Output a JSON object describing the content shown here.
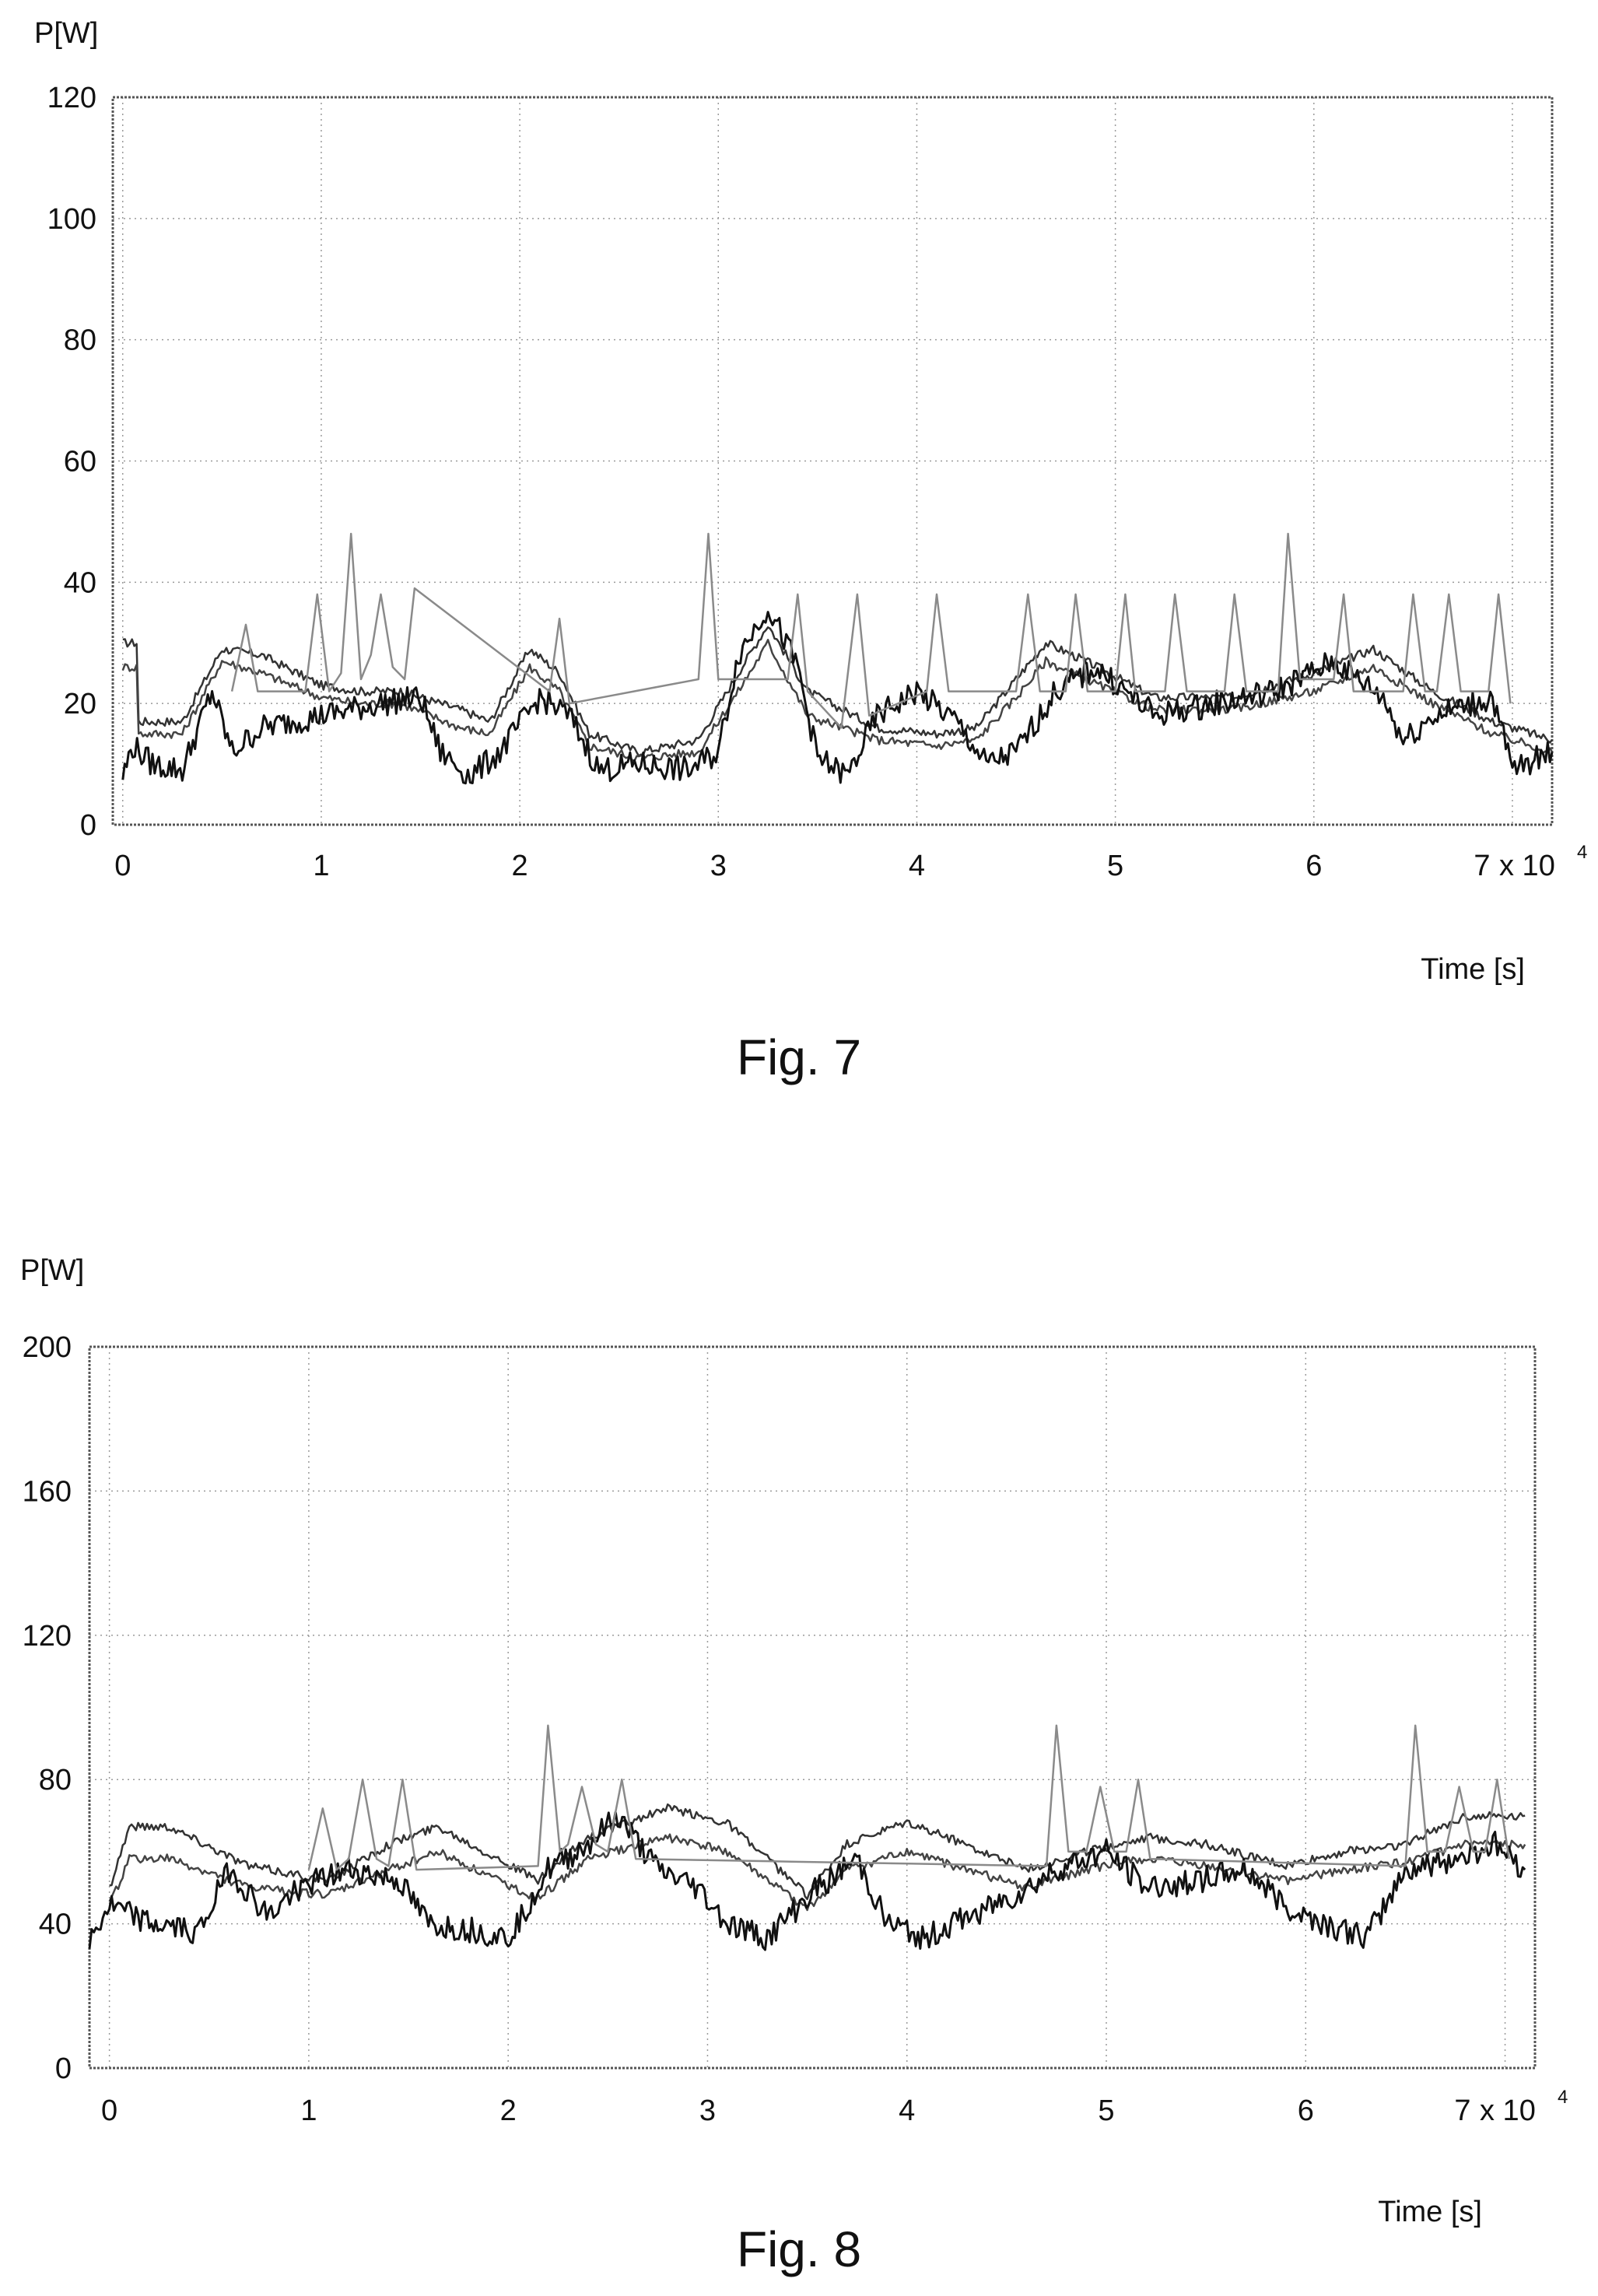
{
  "chart_data": [
    {
      "type": "line",
      "caption": "Fig. 7",
      "ylabel": "P[W]",
      "xlabel": "Time [s]",
      "x_multiplier_label": "x 10",
      "x_multiplier_exponent": "4",
      "x_ticks": [
        "0",
        "1",
        "2",
        "3",
        "4",
        "5",
        "6",
        "7"
      ],
      "y_ticks": [
        "0",
        "20",
        "40",
        "60",
        "80",
        "100",
        "120"
      ],
      "xlim": [
        -0.05,
        7.2
      ],
      "ylim": [
        0,
        120
      ],
      "grid": true,
      "series": [
        {
          "color": "#333333",
          "values_x": [
            0,
            0.07,
            0.08,
            0.3,
            0.5,
            0.7,
            1.0,
            1.2,
            1.4,
            1.7,
            1.85,
            2.05,
            2.2,
            2.35,
            2.6,
            2.9,
            3.1,
            3.25,
            3.45,
            3.8,
            4.1,
            4.3,
            4.5,
            4.65,
            4.85,
            5.2,
            5.6,
            6.0,
            6.3,
            6.6,
            6.9,
            7.2
          ],
          "values_y": [
            30,
            30,
            17,
            17,
            29,
            28,
            23,
            22,
            22,
            19,
            17,
            29,
            25,
            15,
            12,
            14,
            25,
            33,
            22,
            16,
            15,
            16,
            24,
            30,
            27,
            21,
            21,
            25,
            29,
            22,
            17,
            14
          ]
        },
        {
          "color": "#444444",
          "values_x": [
            0,
            0.07,
            0.08,
            0.3,
            0.5,
            0.7,
            1.0,
            1.2,
            1.4,
            1.7,
            1.85,
            2.05,
            2.2,
            2.35,
            2.6,
            2.9,
            3.1,
            3.25,
            3.45,
            3.8,
            4.1,
            4.3,
            4.5,
            4.65,
            4.85,
            5.2,
            5.6,
            6.0,
            6.3,
            6.6,
            6.9,
            7.2
          ],
          "values_y": [
            26,
            26,
            15,
            15,
            27,
            25,
            21,
            20,
            20,
            16,
            15,
            26,
            22,
            13,
            11,
            12,
            22,
            30,
            18,
            14,
            13,
            14,
            21,
            27,
            24,
            19,
            19,
            22,
            26,
            20,
            15,
            12
          ]
        },
        {
          "color": "#111111",
          "values_x": [
            0,
            0.05,
            0.15,
            0.3,
            0.45,
            0.55,
            0.7,
            1.0,
            1.3,
            1.5,
            1.6,
            1.75,
            1.9,
            2.1,
            2.25,
            2.4,
            2.6,
            2.85,
            3.0,
            3.1,
            3.25,
            3.4,
            3.5,
            3.65,
            3.8,
            4.0,
            4.2,
            4.35,
            4.5,
            4.7,
            4.9,
            5.2,
            5.5,
            5.8,
            6.1,
            6.35,
            6.45,
            6.6,
            6.9,
            7.0,
            7.2
          ],
          "values_y": [
            8,
            13,
            10,
            9,
            22,
            12,
            16,
            18,
            20,
            21,
            12,
            8,
            12,
            21,
            18,
            9,
            10,
            9,
            12,
            28,
            36,
            26,
            11,
            8,
            18,
            22,
            17,
            10,
            12,
            22,
            26,
            18,
            20,
            22,
            27,
            21,
            14,
            18,
            21,
            9,
            12
          ]
        },
        {
          "color": "#8a8a8a",
          "values_x": [
            0.55,
            0.62,
            0.68,
            0.92,
            0.98,
            1.04,
            1.1,
            1.15,
            1.2,
            1.25,
            1.3,
            1.36,
            1.42,
            1.47,
            2.15,
            2.2,
            2.25,
            2.9,
            2.95,
            3.0,
            3.35,
            3.4,
            3.45,
            3.62,
            3.7,
            3.76,
            4.05,
            4.1,
            4.16,
            4.5,
            4.56,
            4.62,
            4.75,
            4.8,
            4.86,
            5.0,
            5.05,
            5.1,
            5.25,
            5.3,
            5.36,
            5.55,
            5.6,
            5.66,
            5.82,
            5.87,
            5.93,
            6.1,
            6.15,
            6.2,
            6.45,
            6.5,
            6.56,
            6.62,
            6.68,
            6.74,
            6.88,
            6.93,
            6.99
          ],
          "values_y": [
            22,
            33,
            22,
            22,
            38,
            22,
            25,
            48,
            24,
            28,
            38,
            26,
            24,
            39,
            22,
            34,
            20,
            24,
            48,
            24,
            24,
            38,
            22,
            16,
            38,
            18,
            22,
            38,
            22,
            22,
            38,
            22,
            22,
            38,
            22,
            22,
            38,
            22,
            22,
            38,
            22,
            22,
            38,
            22,
            22,
            48,
            24,
            24,
            38,
            22,
            22,
            38,
            22,
            22,
            38,
            22,
            22,
            38,
            20
          ]
        }
      ]
    },
    {
      "type": "line",
      "caption": "Fig. 8",
      "ylabel": "P[W]",
      "xlabel": "Time [s]",
      "x_multiplier_label": "x 10",
      "x_multiplier_exponent": "4",
      "x_ticks": [
        "0",
        "1",
        "2",
        "3",
        "4",
        "5",
        "6",
        "7"
      ],
      "y_ticks": [
        "0",
        "40",
        "80",
        "120",
        "160",
        "200"
      ],
      "xlim": [
        -0.1,
        7.15
      ],
      "ylim": [
        0,
        200
      ],
      "grid": true,
      "series": [
        {
          "color": "#333333",
          "values_x": [
            0,
            0.1,
            0.3,
            0.7,
            1.1,
            1.4,
            1.65,
            1.95,
            2.15,
            2.4,
            2.8,
            3.1,
            3.5,
            3.7,
            4.0,
            4.3,
            4.6,
            4.9,
            5.2,
            5.5,
            5.9,
            6.2,
            6.5,
            6.8,
            7.1
          ],
          "values_y": [
            50,
            67,
            67,
            56,
            52,
            62,
            67,
            58,
            52,
            64,
            72,
            68,
            48,
            62,
            68,
            62,
            55,
            60,
            64,
            62,
            56,
            60,
            62,
            70,
            70
          ]
        },
        {
          "color": "#444444",
          "values_x": [
            0,
            0.1,
            0.3,
            0.7,
            1.1,
            1.4,
            1.65,
            1.95,
            2.15,
            2.4,
            2.8,
            3.1,
            3.5,
            3.7,
            4.0,
            4.3,
            4.6,
            4.9,
            5.2,
            5.5,
            5.9,
            6.2,
            6.5,
            6.8,
            7.1
          ],
          "values_y": [
            45,
            58,
            58,
            50,
            48,
            55,
            60,
            52,
            47,
            58,
            64,
            60,
            44,
            55,
            60,
            55,
            50,
            55,
            58,
            56,
            52,
            55,
            57,
            62,
            62
          ]
        },
        {
          "color": "#111111",
          "values_x": [
            -0.1,
            0.0,
            0.2,
            0.45,
            0.6,
            0.8,
            0.95,
            1.2,
            1.45,
            1.6,
            1.85,
            2.0,
            2.2,
            2.4,
            2.55,
            2.75,
            2.95,
            3.1,
            3.3,
            3.55,
            3.75,
            3.9,
            4.1,
            4.3,
            4.55,
            4.75,
            5.0,
            5.2,
            5.45,
            5.7,
            5.9,
            6.1,
            6.3,
            6.5,
            6.75,
            6.95,
            7.1
          ],
          "values_y": [
            35,
            45,
            40,
            38,
            55,
            42,
            50,
            55,
            52,
            40,
            38,
            36,
            55,
            62,
            70,
            55,
            50,
            40,
            36,
            50,
            58,
            40,
            36,
            42,
            48,
            55,
            60,
            50,
            52,
            55,
            45,
            40,
            36,
            55,
            58,
            62,
            55
          ]
        },
        {
          "color": "#8a8a8a",
          "values_x": [
            1.0,
            1.07,
            1.14,
            1.2,
            1.27,
            1.34,
            1.4,
            1.47,
            1.54,
            2.15,
            2.2,
            2.26,
            2.3,
            2.37,
            2.44,
            2.5,
            2.57,
            2.64,
            4.7,
            4.75,
            4.81,
            4.9,
            4.97,
            5.04,
            5.1,
            5.16,
            5.22,
            6.5,
            6.55,
            6.61,
            6.7,
            6.77,
            6.84,
            6.9,
            6.96,
            7.02
          ],
          "values_y": [
            55,
            72,
            55,
            58,
            80,
            58,
            56,
            80,
            55,
            56,
            95,
            60,
            62,
            78,
            62,
            60,
            80,
            58,
            56,
            95,
            60,
            60,
            78,
            60,
            60,
            80,
            58,
            56,
            95,
            60,
            60,
            78,
            60,
            60,
            80,
            58
          ]
        }
      ]
    }
  ]
}
